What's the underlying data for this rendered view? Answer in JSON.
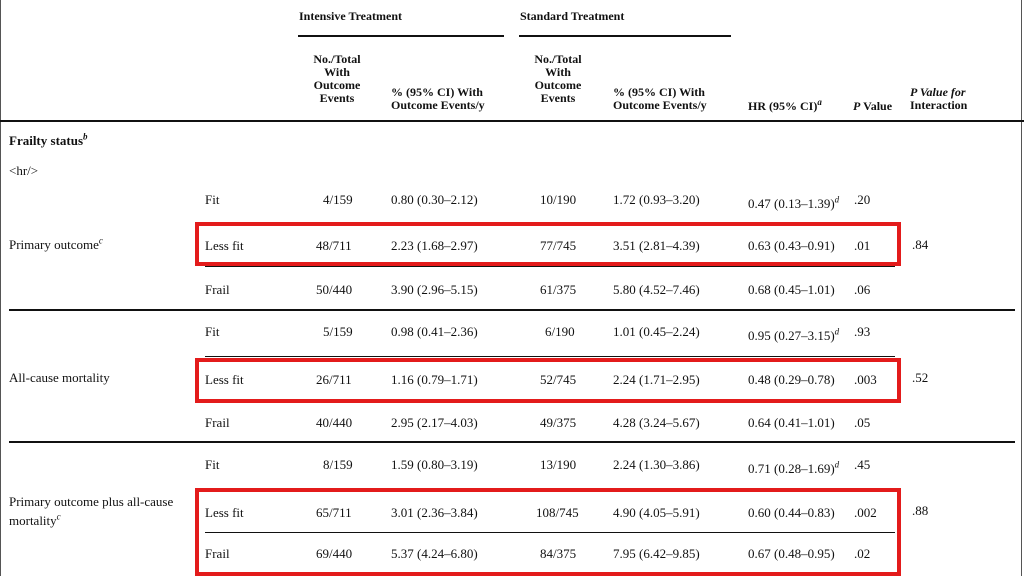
{
  "header": {
    "group_intensive": "Intensive Treatment",
    "group_standard": "Standard Treatment",
    "col_events": [
      "No./Total",
      "With",
      "Outcome",
      "Events"
    ],
    "col_rate": [
      "% (95% CI) With",
      "Outcome Events/y"
    ],
    "col_hr": "HR (95% CI)",
    "col_hr_sup": "a",
    "col_p": "P Value",
    "col_p_italic": "P",
    "col_p_rest": " Value",
    "col_interaction": [
      "P Value for",
      "Interaction"
    ]
  },
  "section": {
    "title": "Frailty status",
    "title_sup": "b",
    "raw_tag": "<hr/>"
  },
  "groups": [
    {
      "label": "Primary outcome",
      "label_sup": "c",
      "interaction_p": ".84",
      "rows": [
        {
          "level": "Fit",
          "int_events": "4/159",
          "int_rate": "0.80 (0.30–2.12)",
          "std_events": "10/190",
          "std_rate": "1.72 (0.93–3.20)",
          "hr": "0.47 (0.13–1.39)",
          "hr_sup": "d",
          "p": ".20"
        },
        {
          "level": "Less fit",
          "int_events": "48/711",
          "int_rate": "2.23 (1.68–2.97)",
          "std_events": "77/745",
          "std_rate": "3.51 (2.81–4.39)",
          "hr": "0.63 (0.43–0.91)",
          "hr_sup": "",
          "p": ".01"
        },
        {
          "level": "Frail",
          "int_events": "50/440",
          "int_rate": "3.90 (2.96–5.15)",
          "std_events": "61/375",
          "std_rate": "5.80 (4.52–7.46)",
          "hr": "0.68 (0.45–1.01)",
          "hr_sup": "",
          "p": ".06"
        }
      ]
    },
    {
      "label": "All-cause mortality",
      "label_sup": "",
      "interaction_p": ".52",
      "rows": [
        {
          "level": "Fit",
          "int_events": "5/159",
          "int_rate": "0.98 (0.41–2.36)",
          "std_events": "6/190",
          "std_rate": "1.01 (0.45–2.24)",
          "hr": "0.95 (0.27–3.15)",
          "hr_sup": "d",
          "p": ".93"
        },
        {
          "level": "Less fit",
          "int_events": "26/711",
          "int_rate": "1.16 (0.79–1.71)",
          "std_events": "52/745",
          "std_rate": "2.24 (1.71–2.95)",
          "hr": "0.48 (0.29–0.78)",
          "hr_sup": "",
          "p": ".003"
        },
        {
          "level": "Frail",
          "int_events": "40/440",
          "int_rate": "2.95 (2.17–4.03)",
          "std_events": "49/375",
          "std_rate": "4.28 (3.24–5.67)",
          "hr": "0.64 (0.41–1.01)",
          "hr_sup": "",
          "p": ".05"
        }
      ]
    },
    {
      "label": [
        "Primary outcome plus all-cause",
        "mortality"
      ],
      "label_sup": "c",
      "interaction_p": ".88",
      "rows": [
        {
          "level": "Fit",
          "int_events": "8/159",
          "int_rate": "1.59 (0.80–3.19)",
          "std_events": "13/190",
          "std_rate": "2.24 (1.30–3.86)",
          "hr": "0.71 (0.28–1.69)",
          "hr_sup": "d",
          "p": ".45"
        },
        {
          "level": "Less fit",
          "int_events": "65/711",
          "int_rate": "3.01 (2.36–3.84)",
          "std_events": "108/745",
          "std_rate": "4.90 (4.05–5.91)",
          "hr": "0.60 (0.44–0.83)",
          "hr_sup": "",
          "p": ".002"
        },
        {
          "level": "Frail",
          "int_events": "69/440",
          "int_rate": "5.37 (4.24–6.80)",
          "std_events": "84/375",
          "std_rate": "7.95 (6.42–9.85)",
          "hr": "0.67 (0.48–0.95)",
          "hr_sup": "",
          "p": ".02"
        }
      ]
    }
  ],
  "highlight_color": "#e31b1b"
}
